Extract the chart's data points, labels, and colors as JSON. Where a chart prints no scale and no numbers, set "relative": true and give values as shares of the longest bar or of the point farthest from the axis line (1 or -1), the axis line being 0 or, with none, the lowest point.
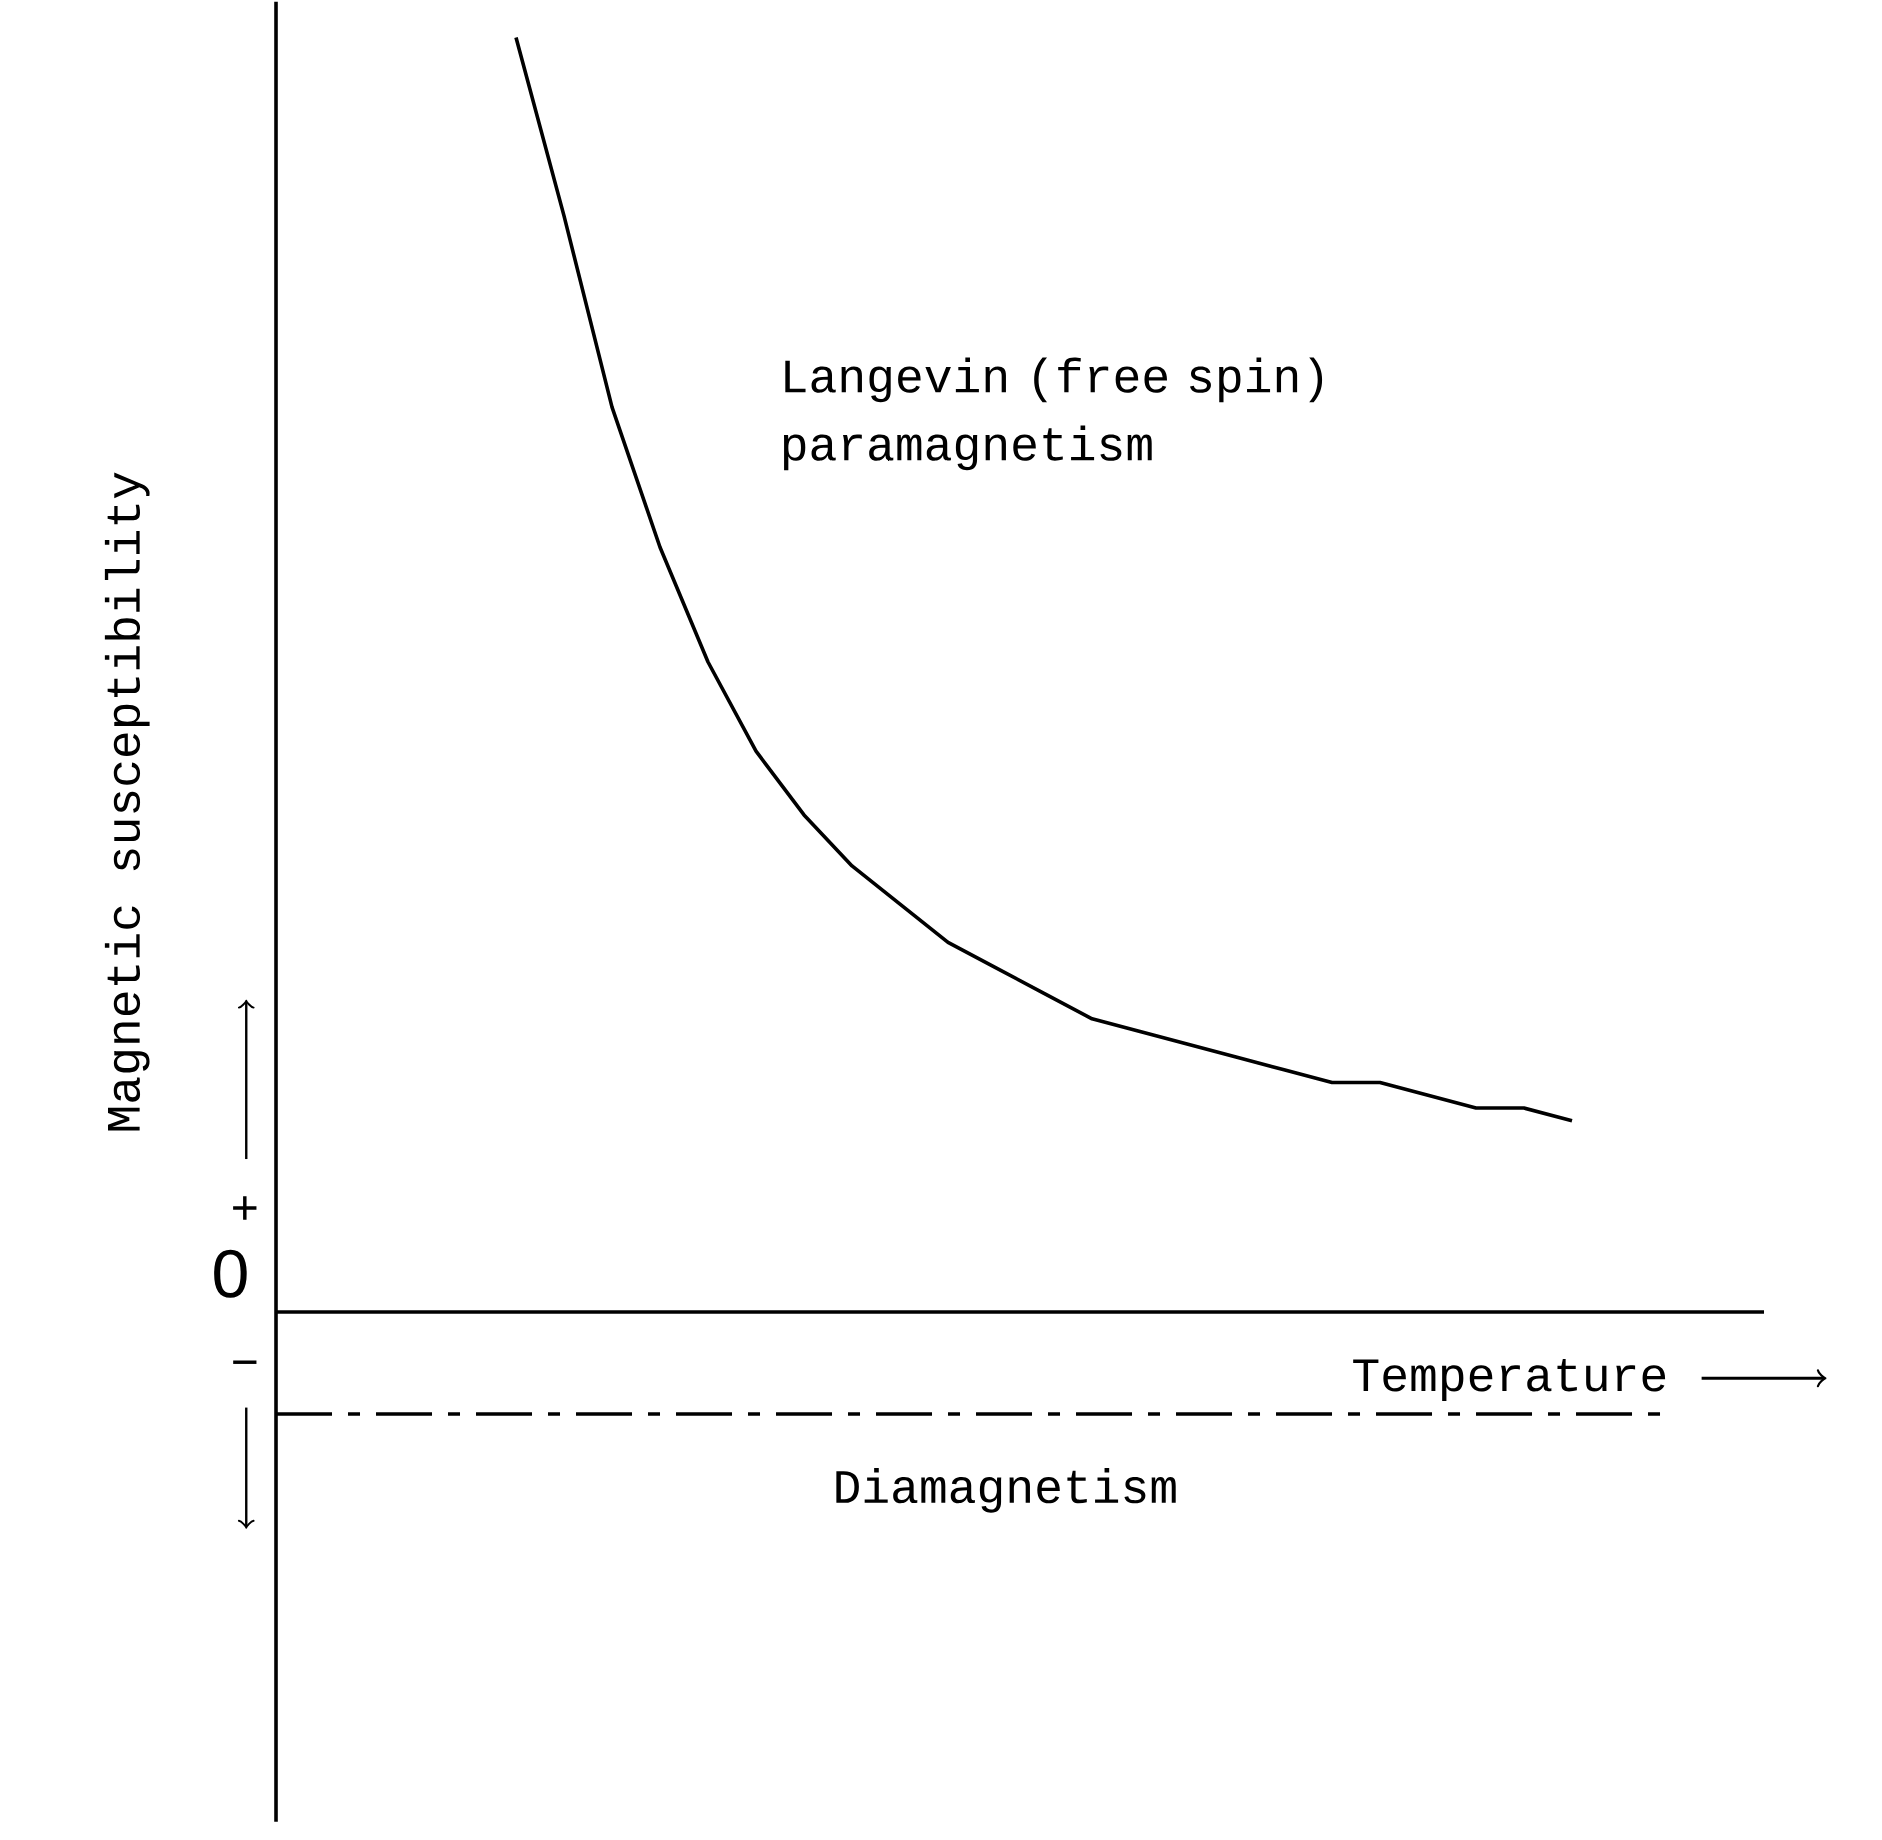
{
  "chart_data": {
    "type": "line",
    "relative": true,
    "xlabel": "Temperature",
    "ylabel": "Magnetic susceptibility",
    "annotations": [
      "0",
      "+",
      "−"
    ],
    "categories": [
      null,
      null,
      null,
      null,
      null,
      null,
      null,
      null,
      null,
      null,
      null,
      null,
      null,
      null,
      null,
      null,
      null,
      null,
      null,
      null,
      null,
      null,
      null,
      null,
      null,
      null,
      null,
      null,
      null,
      null,
      null,
      null
    ],
    "series": [
      {
        "name": "Langevin (free spin) paramagnetism",
        "color": "#000000",
        "line_style": "solid",
        "values": [
          null,
          null,
          null,
          null,
          null,
          1,
          0.86,
          0.71,
          0.6,
          0.51,
          0.44,
          0.39,
          0.35,
          0.32,
          0.29,
          0.27,
          0.25,
          0.23,
          0.22,
          0.21,
          0.2,
          0.19,
          0.18,
          0.18,
          0.17,
          0.16,
          0.16,
          0.15,
          null,
          null,
          null,
          null
        ]
      },
      {
        "name": "Diamagnetism",
        "color": "#000000",
        "line_style": "dashed",
        "values": [
          -0.08,
          -0.08,
          -0.08,
          -0.08,
          -0.08,
          -0.08,
          -0.08,
          -0.08,
          -0.08,
          -0.08,
          -0.08,
          -0.08,
          -0.08,
          -0.08,
          -0.08,
          -0.08,
          -0.08,
          -0.08,
          -0.08,
          -0.08,
          -0.08,
          -0.08,
          -0.08,
          -0.08,
          -0.08,
          -0.08,
          -0.08,
          -0.08,
          -0.08,
          -0.08,
          null,
          null
        ]
      }
    ]
  }
}
